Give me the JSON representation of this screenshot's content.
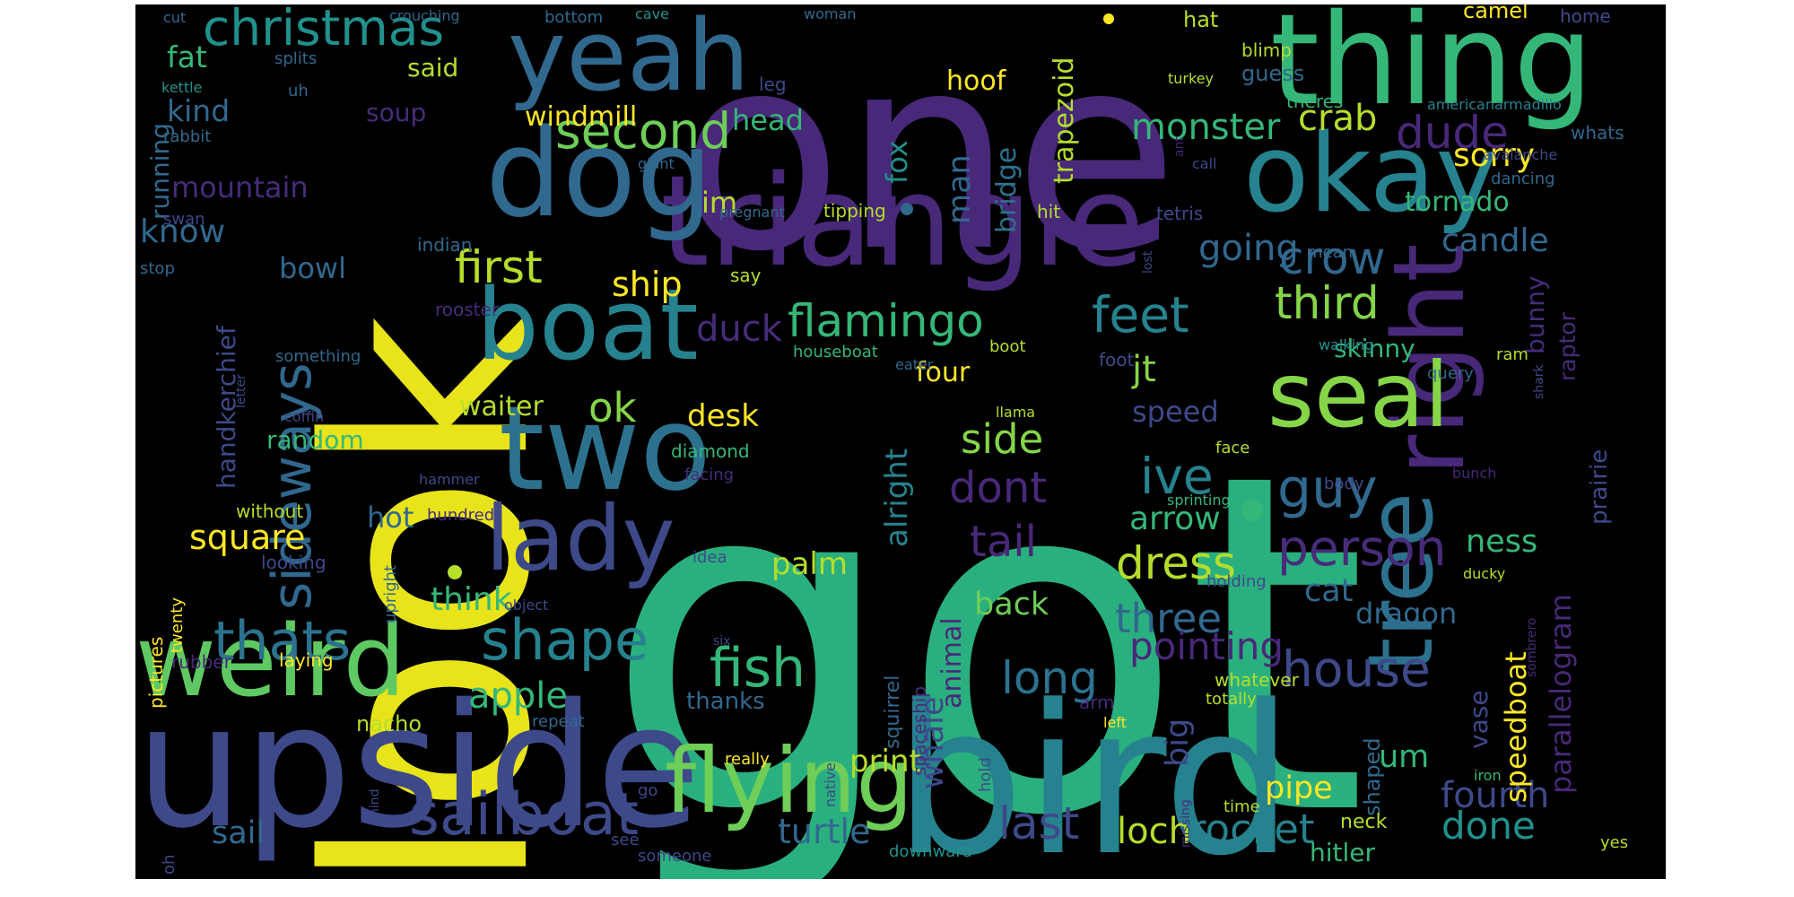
{
  "background": "#000000",
  "palette": {
    "yellow": "#fde725",
    "lime": "#b5de2b",
    "green": "#6ece58",
    "teal_green": "#35b779",
    "sea": "#1f9e89",
    "teal": "#26828e",
    "steel": "#31688e",
    "indigo": "#3e4989",
    "purple": "#482878",
    "deep": "#440154"
  },
  "words": [
    {
      "text": "got",
      "color": "#2ab07f"
    },
    {
      "text": "one",
      "color": "#482878"
    },
    {
      "text": "look",
      "color": "#e8e419"
    },
    {
      "text": "bird",
      "color": "#26828e"
    },
    {
      "text": "thing",
      "color": "#35b779"
    },
    {
      "text": "upside",
      "color": "#3e4989"
    },
    {
      "text": "triangle",
      "color": "#482878"
    },
    {
      "text": "dog",
      "color": "#31688e"
    },
    {
      "text": "two",
      "color": "#2c728e"
    },
    {
      "text": "okay",
      "color": "#26828e"
    },
    {
      "text": "yeah",
      "color": "#31688e"
    },
    {
      "text": "boat",
      "color": "#26828e"
    },
    {
      "text": "weird",
      "color": "#5ec962"
    },
    {
      "text": "lady",
      "color": "#3e4989"
    },
    {
      "text": "flying",
      "color": "#6ece58"
    },
    {
      "text": "right",
      "color": "#482878"
    },
    {
      "text": "tree",
      "color": "#2c728e"
    },
    {
      "text": "seal",
      "color": "#86d549"
    },
    {
      "text": "sailboat",
      "color": "#3e4989"
    },
    {
      "text": "sideways",
      "color": "#31688e"
    },
    {
      "text": "shape",
      "color": "#26828e"
    },
    {
      "text": "second",
      "color": "#6ece58"
    },
    {
      "text": "christmas",
      "color": "#21918c"
    },
    {
      "text": "guy",
      "color": "#31688e"
    },
    {
      "text": "person",
      "color": "#472c7a"
    },
    {
      "text": "flamingo",
      "color": "#35b779"
    },
    {
      "text": "feet",
      "color": "#26828e"
    },
    {
      "text": "fish",
      "color": "#35b779"
    },
    {
      "text": "house",
      "color": "#3e4989"
    },
    {
      "text": "thats",
      "color": "#2c728e"
    },
    {
      "text": "first",
      "color": "#b5de2b"
    },
    {
      "text": "rocket",
      "color": "#26828e"
    },
    {
      "text": "third",
      "color": "#86d549"
    },
    {
      "text": "crow",
      "color": "#31688e"
    },
    {
      "text": "last",
      "color": "#3e4989"
    },
    {
      "text": "dress",
      "color": "#b5de2b"
    },
    {
      "text": "three",
      "color": "#31688e"
    },
    {
      "text": "pointing",
      "color": "#482878"
    },
    {
      "text": "long",
      "color": "#2c728e"
    },
    {
      "text": "turtle",
      "color": "#31688e"
    },
    {
      "text": "loch",
      "color": "#b5de2b"
    },
    {
      "text": "done",
      "color": "#21918c"
    },
    {
      "text": "fourth",
      "color": "#3e4989"
    },
    {
      "text": "ive",
      "color": "#26828e"
    },
    {
      "text": "dont",
      "color": "#482878"
    },
    {
      "text": "tail",
      "color": "#482878"
    },
    {
      "text": "side",
      "color": "#86d549"
    },
    {
      "text": "monster",
      "color": "#35b779"
    },
    {
      "text": "dude",
      "color": "#482878"
    },
    {
      "text": "crab",
      "color": "#b5de2b"
    },
    {
      "text": "duck",
      "color": "#472c7a"
    },
    {
      "text": "ship",
      "color": "#fde725"
    },
    {
      "text": "ok",
      "color": "#86d549"
    },
    {
      "text": "square",
      "color": "#fde725"
    },
    {
      "text": "apple",
      "color": "#35b779"
    },
    {
      "text": "sail",
      "color": "#31688e"
    },
    {
      "text": "arrow",
      "color": "#35b779"
    },
    {
      "text": "going",
      "color": "#31688e"
    },
    {
      "text": "candle",
      "color": "#31688e"
    },
    {
      "text": "tornado",
      "color": "#35b779"
    },
    {
      "text": "sorry",
      "color": "#fde725"
    },
    {
      "text": "know",
      "color": "#31688e"
    },
    {
      "text": "kind",
      "color": "#31688e"
    },
    {
      "text": "fat",
      "color": "#35b779"
    },
    {
      "text": "mountain",
      "color": "#472c7a"
    },
    {
      "text": "bowl",
      "color": "#31688e"
    },
    {
      "text": "random",
      "color": "#35b779"
    },
    {
      "text": "hot",
      "color": "#31688e"
    },
    {
      "text": "think",
      "color": "#35b779"
    },
    {
      "text": "palm",
      "color": "#b5de2b"
    },
    {
      "text": "back",
      "color": "#6ece58"
    },
    {
      "text": "cat",
      "color": "#31688e"
    },
    {
      "text": "ness",
      "color": "#35b779"
    },
    {
      "text": "dragon",
      "color": "#31688e"
    },
    {
      "text": "um",
      "color": "#35b779"
    },
    {
      "text": "pipe",
      "color": "#fde725"
    },
    {
      "text": "print",
      "color": "#b5de2b"
    },
    {
      "text": "whale",
      "color": "#3e4989"
    },
    {
      "text": "hitler",
      "color": "#35b779"
    },
    {
      "text": "speed",
      "color": "#3e4989"
    },
    {
      "text": "jt",
      "color": "#86d549"
    },
    {
      "text": "four",
      "color": "#fde725"
    },
    {
      "text": "big",
      "color": "#3e4989"
    },
    {
      "text": "alright",
      "color": "#26828e"
    },
    {
      "text": "animal",
      "color": "#482878"
    },
    {
      "text": "man",
      "color": "#31688e"
    },
    {
      "text": "bridge",
      "color": "#2c728e"
    },
    {
      "text": "trapezoid",
      "color": "#b5de2b"
    },
    {
      "text": "fox",
      "color": "#21918c"
    },
    {
      "text": "head",
      "color": "#35b779"
    },
    {
      "text": "hoof",
      "color": "#fde725"
    },
    {
      "text": "windmill",
      "color": "#fde725"
    },
    {
      "text": "soup",
      "color": "#472c7a"
    },
    {
      "text": "said",
      "color": "#b5de2b"
    },
    {
      "text": "running",
      "color": "#31688e"
    },
    {
      "text": "handkerchief",
      "color": "#3e4989"
    },
    {
      "text": "waiter",
      "color": "#b5de2b"
    },
    {
      "text": "desk",
      "color": "#fde725"
    },
    {
      "text": "thanks",
      "color": "#31688e"
    },
    {
      "text": "im",
      "color": "#b5de2b"
    },
    {
      "text": "skinny",
      "color": "#35b779"
    },
    {
      "text": "bunny",
      "color": "#472c7a"
    },
    {
      "text": "raptor",
      "color": "#472c7a"
    },
    {
      "text": "prairie",
      "color": "#3e4989"
    },
    {
      "text": "parallelogram",
      "color": "#482878"
    },
    {
      "text": "speedboat",
      "color": "#fde725"
    },
    {
      "text": "vase",
      "color": "#3e4989"
    },
    {
      "text": "shaped",
      "color": "#31688e"
    },
    {
      "text": "neck",
      "color": "#b5de2b"
    },
    {
      "text": "squirrel",
      "color": "#31688e"
    },
    {
      "text": "spaceship",
      "color": "#472c7a"
    },
    {
      "text": "hat",
      "color": "#b5de2b"
    },
    {
      "text": "guess",
      "color": "#31688e"
    },
    {
      "text": "blimp",
      "color": "#b5de2b"
    },
    {
      "text": "theres",
      "color": "#35b779"
    },
    {
      "text": "camel",
      "color": "#fde725"
    },
    {
      "text": "home",
      "color": "#3e4989"
    },
    {
      "text": "whats",
      "color": "#31688e"
    },
    {
      "text": "dancing",
      "color": "#31688e"
    },
    {
      "text": "pictures",
      "color": "#fde725"
    },
    {
      "text": "twenty",
      "color": "#fde725"
    },
    {
      "text": "upright",
      "color": "#31688e"
    },
    {
      "text": "object",
      "color": "#3e4989"
    },
    {
      "text": "rubber",
      "color": "#482878"
    },
    {
      "text": "laying",
      "color": "#fde725"
    },
    {
      "text": "nacho",
      "color": "#b5de2b"
    },
    {
      "text": "repeat",
      "color": "#31688e"
    },
    {
      "text": "really",
      "color": "#fde725"
    },
    {
      "text": "hold",
      "color": "#3e4989"
    },
    {
      "text": "native",
      "color": "#3e4989"
    },
    {
      "text": "downward",
      "color": "#21918c"
    },
    {
      "text": "someone",
      "color": "#3e4989"
    },
    {
      "text": "see",
      "color": "#3e4989"
    },
    {
      "text": "hind",
      "color": "#3e4989"
    },
    {
      "text": "go",
      "color": "#3e4989"
    },
    {
      "text": "oh",
      "color": "#3e4989"
    },
    {
      "text": "cut",
      "color": "#31688e"
    },
    {
      "text": "crouching",
      "color": "#31688e"
    },
    {
      "text": "bottom",
      "color": "#31688e"
    },
    {
      "text": "cave",
      "color": "#21918c"
    },
    {
      "text": "woman",
      "color": "#31688e"
    },
    {
      "text": "splits",
      "color": "#31688e"
    },
    {
      "text": "uh",
      "color": "#31688e"
    },
    {
      "text": "kettle",
      "color": "#21918c"
    },
    {
      "text": "rabbit",
      "color": "#31688e"
    },
    {
      "text": "swan",
      "color": "#3e4989"
    },
    {
      "text": "stop",
      "color": "#31688e"
    },
    {
      "text": "indian",
      "color": "#31688e"
    },
    {
      "text": "rooster",
      "color": "#472c7a"
    },
    {
      "text": "something",
      "color": "#31688e"
    },
    {
      "text": "coffin",
      "color": "#3e4989"
    },
    {
      "text": "hammer",
      "color": "#3e4989"
    },
    {
      "text": "without",
      "color": "#b5de2b"
    },
    {
      "text": "hundred",
      "color": "#472c7a"
    },
    {
      "text": "looking",
      "color": "#3e4989"
    },
    {
      "text": "letter",
      "color": "#3e4989"
    },
    {
      "text": "leg",
      "color": "#3e4989"
    },
    {
      "text": "giant",
      "color": "#31688e"
    },
    {
      "text": "pregnant",
      "color": "#31688e"
    },
    {
      "text": "tipping",
      "color": "#b5de2b"
    },
    {
      "text": "say",
      "color": "#b5de2b"
    },
    {
      "text": "houseboat",
      "color": "#35b779"
    },
    {
      "text": "eater",
      "color": "#31688e"
    },
    {
      "text": "boot",
      "color": "#b5de2b"
    },
    {
      "text": "foot",
      "color": "#3e4989"
    },
    {
      "text": "llama",
      "color": "#b5de2b"
    },
    {
      "text": "diamond",
      "color": "#35b779"
    },
    {
      "text": "facing",
      "color": "#472c7a"
    },
    {
      "text": "idea",
      "color": "#3e4989"
    },
    {
      "text": "six",
      "color": "#3e4989"
    },
    {
      "text": "hit",
      "color": "#b5de2b"
    },
    {
      "text": "tetris",
      "color": "#3e4989"
    },
    {
      "text": "mean",
      "color": "#31688e"
    },
    {
      "text": "query",
      "color": "#31688e"
    },
    {
      "text": "ram",
      "color": "#b5de2b"
    },
    {
      "text": "walking",
      "color": "#21918c"
    },
    {
      "text": "shark",
      "color": "#3e4989"
    },
    {
      "text": "lost",
      "color": "#3e4989"
    },
    {
      "text": "face",
      "color": "#b5de2b"
    },
    {
      "text": "body",
      "color": "#3e4989"
    },
    {
      "text": "sprinting",
      "color": "#35b779"
    },
    {
      "text": "bunch",
      "color": "#482878"
    },
    {
      "text": "holding",
      "color": "#3e4989"
    },
    {
      "text": "ducky",
      "color": "#b5de2b"
    },
    {
      "text": "sombrero",
      "color": "#472c7a"
    },
    {
      "text": "whatever",
      "color": "#b5de2b"
    },
    {
      "text": "totally",
      "color": "#b5de2b"
    },
    {
      "text": "left",
      "color": "#fde725"
    },
    {
      "text": "iron",
      "color": "#35b779"
    },
    {
      "text": "missing",
      "color": "#472c7a"
    },
    {
      "text": "time",
      "color": "#b5de2b"
    },
    {
      "text": "yes",
      "color": "#b5de2b"
    },
    {
      "text": "turkey",
      "color": "#b5de2b"
    },
    {
      "text": "call",
      "color": "#3e4989"
    },
    {
      "text": "americanarmadillo",
      "color": "#26828e"
    },
    {
      "text": "avalanche",
      "color": "#3e4989"
    },
    {
      "text": "ant",
      "color": "#482878"
    },
    {
      "text": "arm",
      "color": "#482878"
    }
  ]
}
